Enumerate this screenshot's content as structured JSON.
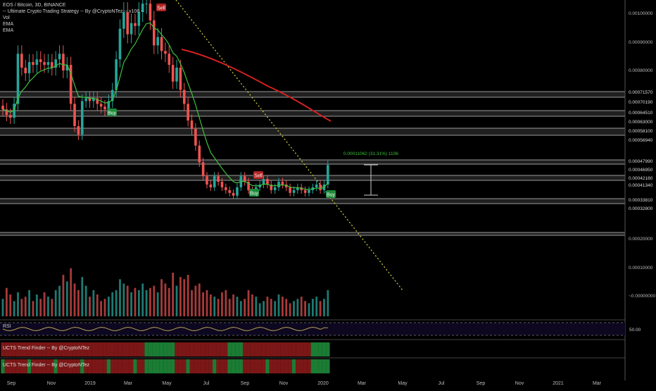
{
  "legend": {
    "symbol_line": "EOS / Bitcoin, 3D, BINANCE",
    "indicator_line": "-- Ultimate Crypto Trading Strategy -- By @CryptoNTez -- v106 --",
    "vol": "Vol",
    "ema1": "EMA",
    "ema2": "EMA"
  },
  "chart_data": {
    "type": "candlestick",
    "symbol": "EOS / Bitcoin",
    "timeframe": "3D",
    "exchange": "BINANCE",
    "price_axis_ticks": [
      "0.00100000",
      "0.00090000",
      "0.00080000",
      "0.00020000",
      "0.00010000",
      "~0.00000000"
    ],
    "level_labels": [
      "0.00071570",
      "0.00070190",
      "0.00064510",
      "0.00063000",
      "0.00058100",
      "0.00056940",
      "0.00047990",
      "0.00046950",
      "0.00042180",
      "0.00041340",
      "0.00033810",
      "0.00032800"
    ],
    "rsi_label": "RSI",
    "rsi_tick": "50.00",
    "trend_finder_labels": [
      "UCTS Trend Finder -- By @CryptoNTez",
      "UCTS Trend Finder -- By @CryptoNTez"
    ],
    "x_ticks": [
      "Sep",
      "Nov",
      "2019",
      "Mar",
      "May",
      "Jul",
      "Sep",
      "Nov",
      "2020",
      "Mar",
      "May",
      "Jul",
      "Sep",
      "Nov",
      "2021",
      "Mar"
    ],
    "signals": [
      {
        "label": "Sell",
        "date": "2019-02",
        "price": 0.000985
      },
      {
        "label": "Buy",
        "date": "2018-12",
        "price": 0.000655
      },
      {
        "label": "Sell",
        "date": "2019-08",
        "price": 0.000415
      },
      {
        "label": "Buy",
        "date": "2019-08",
        "price": 0.000365
      },
      {
        "label": "Buy",
        "date": "2020-01",
        "price": 0.000335
      }
    ],
    "measure_annotation": "0.00011062 (31.31%) 1106",
    "colors": {
      "up": "#26a69a",
      "down": "#ef5350",
      "ema_fast": "#3cc13c",
      "ema_slow": "#d32020",
      "trendline": "#c8c83c",
      "rsi": "#b8a050"
    },
    "price_series": [
      0.00066,
      0.00064,
      0.00063,
      0.00068,
      0.00086,
      0.00081,
      0.00079,
      0.00083,
      0.00082,
      0.00084,
      0.00083,
      0.00082,
      0.00083,
      0.00081,
      0.00084,
      0.00086,
      0.0008,
      0.00082,
      0.00068,
      0.0006,
      0.00057,
      0.00069,
      0.0007,
      0.00069,
      0.0007,
      0.00068,
      0.00067,
      0.00066,
      0.00069,
      0.00073,
      0.00084,
      0.00095,
      0.00101,
      0.00093,
      0.00097,
      0.00096,
      0.00101,
      0.00104,
      0.00104,
      0.00098,
      0.00089,
      0.00092,
      0.00087,
      0.00086,
      0.00082,
      0.00076,
      0.00081,
      0.00073,
      0.00068,
      0.00062,
      0.00059,
      0.00053,
      0.00047,
      0.00042,
      0.00039,
      0.00038,
      0.00042,
      0.0004,
      0.00038,
      0.00037,
      0.00036,
      0.00035,
      0.00038,
      0.00042,
      0.0004,
      0.00037,
      0.00036,
      0.00038,
      0.00039,
      0.00041,
      0.00039,
      0.00037,
      0.00038,
      0.0004,
      0.00039,
      0.00038,
      0.00036,
      0.00037,
      0.00038,
      0.00037,
      0.00036,
      0.00037,
      0.00038,
      0.00039,
      0.00037,
      0.00039,
      0.00046
    ],
    "volume_series": [
      40,
      65,
      50,
      35,
      55,
      40,
      45,
      60,
      35,
      50,
      40,
      55,
      45,
      40,
      60,
      70,
      95,
      80,
      110,
      75,
      60,
      90,
      70,
      45,
      60,
      50,
      35,
      40,
      45,
      55,
      60,
      85,
      75,
      70,
      55,
      65,
      60,
      75,
      60,
      65,
      70,
      55,
      85,
      75,
      65,
      100,
      70,
      90,
      85,
      95,
      60,
      70,
      75,
      55,
      60,
      50,
      45,
      40,
      55,
      60,
      40,
      50,
      45,
      35,
      40,
      60,
      50,
      45,
      30,
      35,
      45,
      40,
      35,
      50,
      45,
      40,
      30,
      35,
      40,
      45,
      35,
      30,
      40,
      45,
      35,
      40,
      60
    ]
  }
}
